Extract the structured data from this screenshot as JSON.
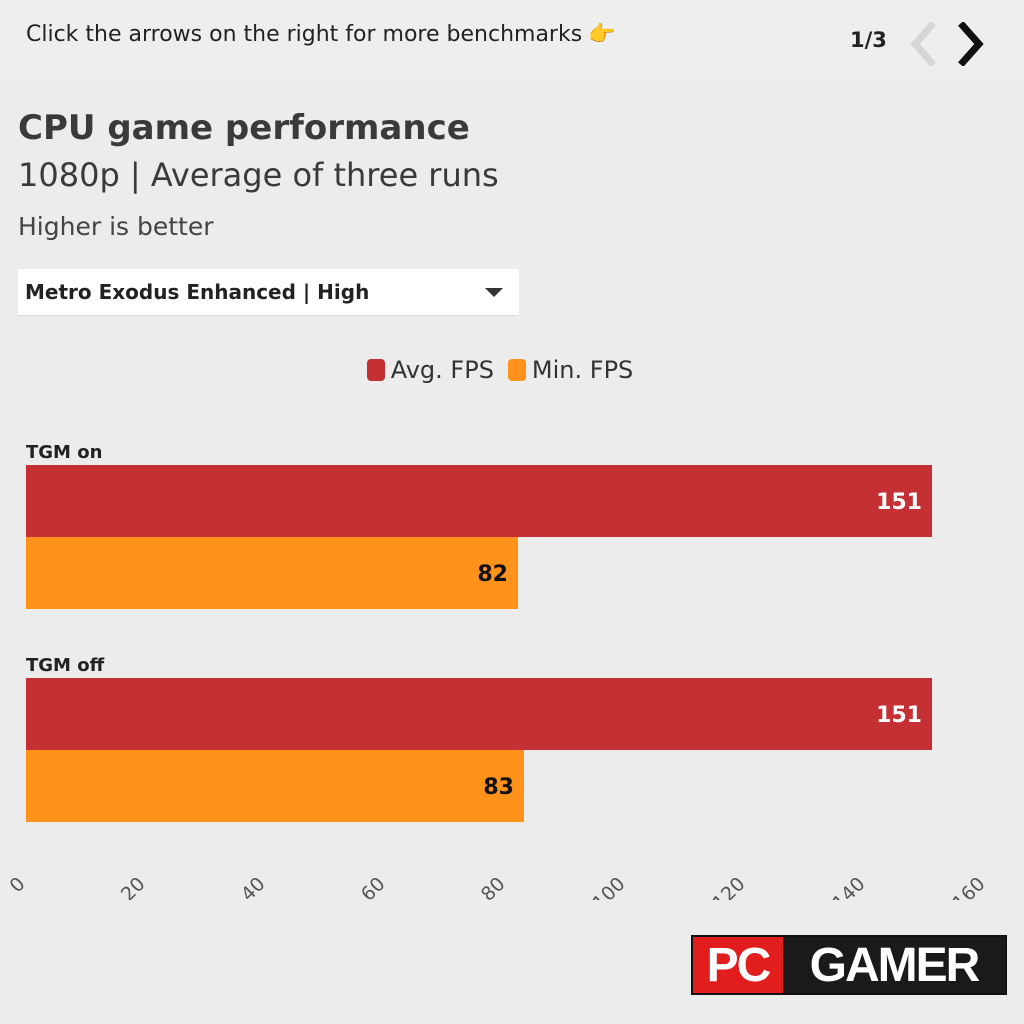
{
  "header": {
    "hint": "Click the arrows on the right for more benchmarks",
    "hint_emoji": "👉",
    "pager": "1/3",
    "prev_icon": "chevron-left-icon",
    "next_icon": "chevron-right-icon"
  },
  "title": "CPU game performance",
  "subtitle": "1080p | Average of three runs",
  "note": "Higher is better",
  "dropdown": {
    "selected": "Metro Exodus Enhanced | High"
  },
  "logo": {
    "left": "PC",
    "right": "GAMER"
  },
  "colors": {
    "avg": "#c43033",
    "min": "#fe921b",
    "background": "#ececec"
  },
  "chart_data": {
    "type": "bar",
    "orientation": "horizontal",
    "categories": [
      "TGM on",
      "TGM off"
    ],
    "series": [
      {
        "name": "Avg. FPS",
        "values": [
          151,
          151
        ]
      },
      {
        "name": "Min. FPS",
        "values": [
          82,
          83
        ]
      }
    ],
    "xlim": [
      0,
      160
    ],
    "xticks": [
      0,
      20,
      40,
      60,
      80,
      100,
      120,
      140,
      160
    ],
    "legend": "top-center"
  }
}
